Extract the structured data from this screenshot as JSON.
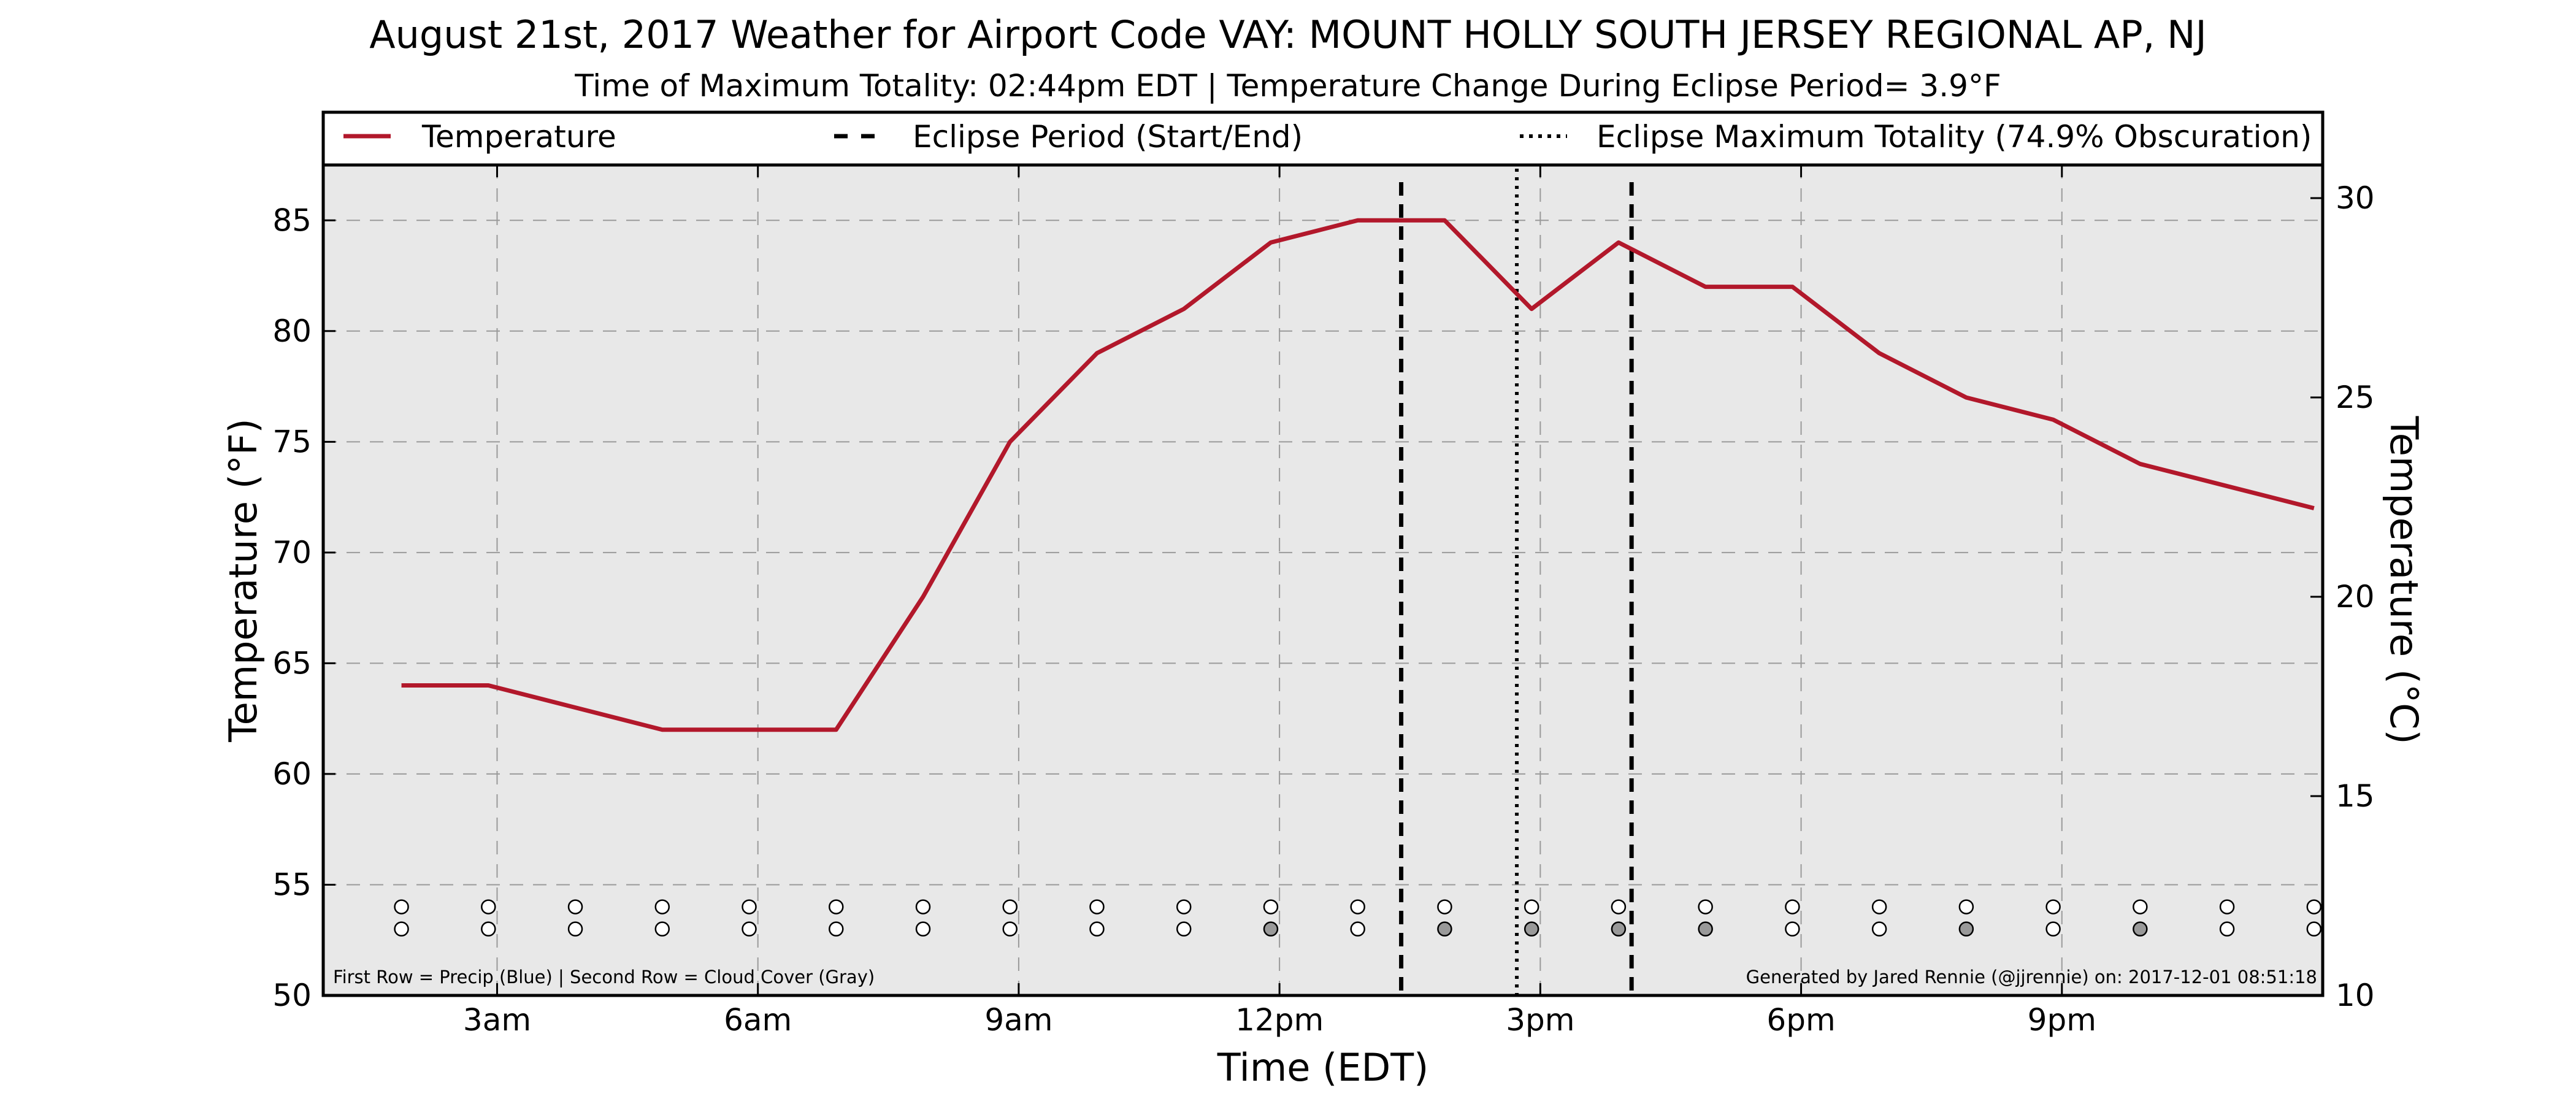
{
  "title": "August 21st, 2017 Weather for Airport Code VAY: MOUNT HOLLY SOUTH JERSEY REGIONAL AP, NJ",
  "subtitle": "Time of Maximum Totality: 02:44pm EDT | Temperature Change During Eclipse Period= 3.9°F",
  "footer_left": "First Row = Precip (Blue) | Second Row = Cloud Cover (Gray)",
  "footer_right": "Generated by Jared Rennie (@jjrennie) on: 2017-12-01 08:51:18",
  "colors": {
    "temperature_line": "#b2182b",
    "plot_background": "#e8e8e8",
    "cloud_filled": "#999999"
  },
  "chart_data": {
    "type": "line",
    "title": "August 21st, 2017 Weather for Airport Code VAY: MOUNT HOLLY SOUTH JERSEY REGIONAL AP, NJ",
    "xlabel": "Time (EDT)",
    "ylabel": "Temperature (°F)",
    "y2label": "Temperature (°C)",
    "xlim": [
      1.0,
      24.0
    ],
    "ylim": [
      50,
      87.5
    ],
    "y2lim": [
      10,
      30.83
    ],
    "grid": true,
    "legend_placement": "top",
    "x_ticks": [
      {
        "x": 3,
        "label": "3am"
      },
      {
        "x": 6,
        "label": "6am"
      },
      {
        "x": 9,
        "label": "9am"
      },
      {
        "x": 12,
        "label": "12pm"
      },
      {
        "x": 15,
        "label": "3pm"
      },
      {
        "x": 18,
        "label": "6pm"
      },
      {
        "x": 21,
        "label": "9pm"
      }
    ],
    "y_ticks": [
      50,
      55,
      60,
      65,
      70,
      75,
      80,
      85
    ],
    "y2_ticks": [
      10,
      15,
      20,
      25,
      30
    ],
    "legend": [
      {
        "label": "Temperature",
        "style": "solid"
      },
      {
        "label": "Eclipse Period (Start/End)",
        "style": "dashed"
      },
      {
        "label": "Eclipse Maximum Totality (74.9% Obscuration)",
        "style": "dotted"
      }
    ],
    "series": [
      {
        "name": "Temperature",
        "x": [
          1.9,
          2.9,
          3.9,
          4.9,
          5.9,
          6.9,
          7.9,
          8.9,
          9.9,
          10.9,
          11.9,
          12.9,
          13.9,
          14.9,
          15.9,
          16.9,
          17.9,
          18.9,
          19.9,
          20.9,
          21.9,
          22.9,
          23.9
        ],
        "y": [
          64,
          64,
          63,
          62,
          62,
          62,
          68,
          75,
          79,
          81,
          84,
          85,
          85,
          81,
          84,
          82,
          82,
          79,
          77,
          76,
          74,
          73,
          72
        ]
      }
    ],
    "eclipse_start": 13.4,
    "eclipse_end": 16.05,
    "eclipse_max": 14.73,
    "precip_row": {
      "y": 54,
      "x": [
        1.9,
        2.9,
        3.9,
        4.9,
        5.9,
        6.9,
        7.9,
        8.9,
        9.9,
        10.9,
        11.9,
        12.9,
        13.9,
        14.9,
        15.9,
        16.9,
        17.9,
        18.9,
        19.9,
        20.9,
        21.9,
        22.9,
        23.9
      ],
      "filled": [
        false,
        false,
        false,
        false,
        false,
        false,
        false,
        false,
        false,
        false,
        false,
        false,
        false,
        false,
        false,
        false,
        false,
        false,
        false,
        false,
        false,
        false,
        false
      ]
    },
    "cloud_row": {
      "y": 53,
      "x": [
        1.9,
        2.9,
        3.9,
        4.9,
        5.9,
        6.9,
        7.9,
        8.9,
        9.9,
        10.9,
        11.9,
        12.9,
        13.9,
        14.9,
        15.9,
        16.9,
        17.9,
        18.9,
        19.9,
        20.9,
        21.9,
        22.9,
        23.9
      ],
      "filled": [
        false,
        false,
        false,
        false,
        false,
        false,
        false,
        false,
        false,
        false,
        true,
        false,
        true,
        true,
        true,
        true,
        false,
        false,
        true,
        false,
        true,
        false,
        false
      ]
    }
  }
}
